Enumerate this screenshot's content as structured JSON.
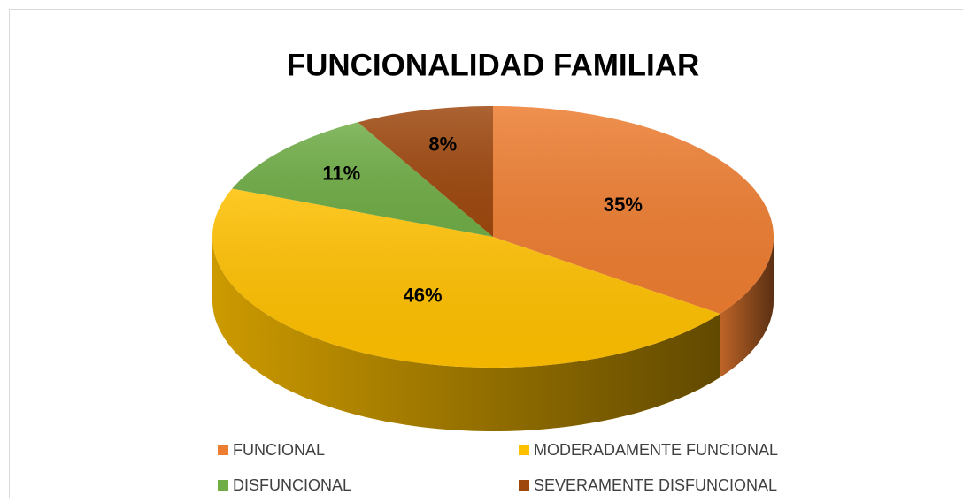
{
  "chart_data": {
    "type": "pie",
    "title": "FUNCIONALIDAD FAMILIAR",
    "categories": [
      "FUNCIONAL",
      "MODERADAMENTE FUNCIONAL",
      "DISFUNCIONAL",
      "SEVERAMENTE DISFUNCIONAL"
    ],
    "values": [
      35,
      46,
      11,
      8
    ],
    "value_labels": [
      "35%",
      "46%",
      "11%",
      "8%"
    ],
    "colors": [
      "#ed7d31",
      "#ffc000",
      "#70ad47",
      "#9e480e"
    ],
    "legend": "bottom"
  }
}
